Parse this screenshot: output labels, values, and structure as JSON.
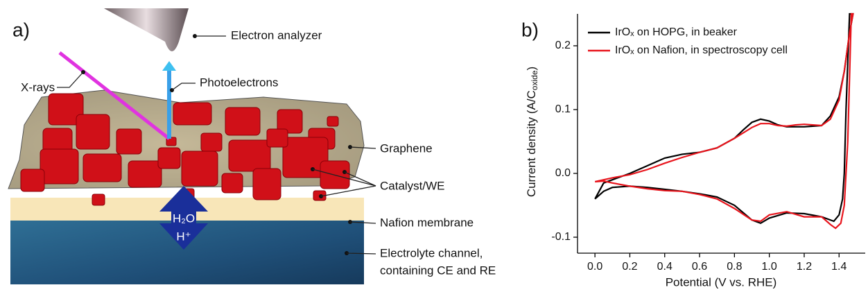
{
  "diagram": {
    "panel_label": "a)",
    "labels": {
      "analyzer": "Electron analyzer",
      "xrays": "X-rays",
      "photoelectrons": "Photoelectrons",
      "graphene": "Graphene",
      "catalyst": "Catalyst/WE",
      "nafion": "Nafion membrane",
      "electrolyte_1": "Electrolyte channel,",
      "electrolyte_2": "containing CE and RE",
      "water": "H₂O",
      "proton": "H⁺"
    }
  },
  "chart_data": {
    "type": "line",
    "panel_label": "b)",
    "xlabel": "Potential (V vs. RHE)",
    "ylabel": {
      "text": "Current density (A/C",
      "sub": "oxide",
      "tail": ")"
    },
    "xlim": [
      -0.1,
      1.55
    ],
    "ylim": [
      -0.125,
      0.25
    ],
    "xticks": [
      {
        "value": 0,
        "label": "0.0"
      },
      0.2,
      0.4,
      0.6,
      0.8,
      {
        "value": 1,
        "label": "1.0"
      },
      1.2,
      1.4
    ],
    "yticks": [
      -0.1,
      {
        "value": 0,
        "label": "0.0"
      },
      0.1,
      0.2
    ],
    "series": [
      {
        "name": "IrOₓ on HOPG, in beaker",
        "color": "#000000",
        "x": [
          0,
          0.05,
          0.1,
          0.2,
          0.3,
          0.4,
          0.5,
          0.6,
          0.7,
          0.8,
          0.85,
          0.9,
          0.95,
          1.0,
          1.05,
          1.1,
          1.2,
          1.3,
          1.35,
          1.4,
          1.43,
          1.46,
          1.48,
          1.46,
          1.44,
          1.43,
          1.42,
          1.4,
          1.37,
          1.3,
          1.2,
          1.1,
          1.0,
          0.95,
          0.9,
          0.8,
          0.7,
          0.6,
          0.5,
          0.4,
          0.3,
          0.2,
          0.1,
          0.05,
          0
        ],
        "values": [
          -0.04,
          -0.015,
          -0.01,
          0.0,
          0.012,
          0.024,
          0.03,
          0.033,
          0.04,
          0.055,
          0.068,
          0.08,
          0.085,
          0.082,
          0.076,
          0.073,
          0.073,
          0.075,
          0.09,
          0.12,
          0.16,
          0.22,
          0.25,
          0.25,
          0.1,
          0.0,
          -0.04,
          -0.065,
          -0.075,
          -0.068,
          -0.063,
          -0.062,
          -0.07,
          -0.078,
          -0.073,
          -0.05,
          -0.037,
          -0.032,
          -0.028,
          -0.025,
          -0.022,
          -0.02,
          -0.022,
          -0.028,
          -0.04
        ]
      },
      {
        "name": "IrOₓ on Nafion, in spectroscopy cell",
        "color": "#e8141c",
        "x": [
          0,
          0.05,
          0.1,
          0.2,
          0.3,
          0.4,
          0.5,
          0.6,
          0.7,
          0.8,
          0.9,
          0.95,
          1.0,
          1.05,
          1.1,
          1.15,
          1.2,
          1.3,
          1.35,
          1.4,
          1.43,
          1.46,
          1.48,
          1.47,
          1.45,
          1.43,
          1.41,
          1.38,
          1.35,
          1.3,
          1.2,
          1.1,
          1.0,
          0.95,
          0.9,
          0.8,
          0.7,
          0.6,
          0.5,
          0.4,
          0.3,
          0.2,
          0.1,
          0.05,
          0
        ],
        "values": [
          -0.013,
          -0.01,
          -0.007,
          -0.002,
          0.006,
          0.016,
          0.025,
          0.033,
          0.04,
          0.055,
          0.072,
          0.078,
          0.078,
          0.075,
          0.074,
          0.076,
          0.077,
          0.075,
          0.085,
          0.115,
          0.16,
          0.22,
          0.25,
          0.25,
          0.05,
          -0.05,
          -0.078,
          -0.086,
          -0.08,
          -0.068,
          -0.068,
          -0.06,
          -0.065,
          -0.075,
          -0.073,
          -0.055,
          -0.04,
          -0.033,
          -0.028,
          -0.027,
          -0.024,
          -0.02,
          -0.015,
          -0.012,
          -0.013
        ]
      }
    ]
  }
}
